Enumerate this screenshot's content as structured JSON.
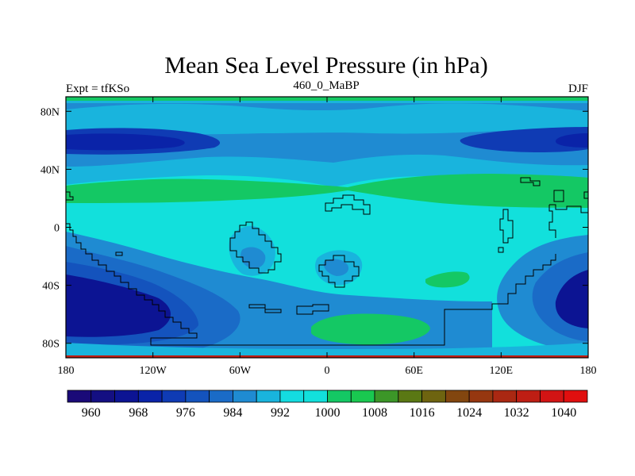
{
  "chart_data": {
    "type": "heatmap",
    "title": "Mean Sea Level Pressure (in hPa)",
    "left_string": "Expt = tfKSo",
    "center_string": "460_0_MaBP",
    "right_string": "DJF",
    "x_ticks": [
      {
        "value": -180,
        "label": "180"
      },
      {
        "value": -120,
        "label": "120W"
      },
      {
        "value": -60,
        "label": "60W"
      },
      {
        "value": 0,
        "label": "0"
      },
      {
        "value": 60,
        "label": "60E"
      },
      {
        "value": 120,
        "label": "120E"
      },
      {
        "value": 180,
        "label": "180"
      }
    ],
    "y_ticks": [
      {
        "value": 80,
        "label": "80N"
      },
      {
        "value": 40,
        "label": "40N"
      },
      {
        "value": 0,
        "label": "0"
      },
      {
        "value": -40,
        "label": "40S"
      },
      {
        "value": -80,
        "label": "80S"
      }
    ],
    "xlim": [
      -180,
      180
    ],
    "ylim": [
      -90,
      90
    ],
    "levels": [
      960,
      964,
      968,
      972,
      976,
      980,
      984,
      988,
      992,
      996,
      1000,
      1004,
      1008,
      1012,
      1016,
      1020,
      1024,
      1028,
      1032,
      1036,
      1040
    ],
    "colorbar_labels": [
      {
        "value": 960,
        "label": "960"
      },
      {
        "value": 968,
        "label": "968"
      },
      {
        "value": 976,
        "label": "976"
      },
      {
        "value": 984,
        "label": "984"
      },
      {
        "value": 992,
        "label": "992"
      },
      {
        "value": 1000,
        "label": "1000"
      },
      {
        "value": 1008,
        "label": "1008"
      },
      {
        "value": 1016,
        "label": "1016"
      },
      {
        "value": 1024,
        "label": "1024"
      },
      {
        "value": 1032,
        "label": "1032"
      },
      {
        "value": 1040,
        "label": "1040"
      }
    ],
    "colors": [
      "#1a0a78",
      "#140f82",
      "#0c1493",
      "#0a23a8",
      "#0f3bb4",
      "#1453bd",
      "#1a6bc7",
      "#1f8bd2",
      "#19b4dd",
      "#14dce0",
      "#12e0dc",
      "#14c864",
      "#19c850",
      "#3c9628",
      "#5a7814",
      "#6e6410",
      "#82460f",
      "#963710",
      "#aa2812",
      "#be1e14",
      "#d21414",
      "#e10f0f"
    ],
    "pressure_field": {
      "lon": [
        -180,
        -150,
        -120,
        -90,
        -60,
        -30,
        0,
        30,
        60,
        90,
        120,
        150,
        180
      ],
      "lat": [
        90,
        75,
        60,
        45,
        30,
        15,
        0,
        -15,
        -30,
        -45,
        -60,
        -75,
        -90
      ],
      "values_hpa": [
        [
          1004,
          1004,
          1004,
          1004,
          1004,
          1004,
          1004,
          1004,
          1004,
          1004,
          1004,
          1004,
          1004
        ],
        [
          988,
          988,
          988,
          990,
          990,
          990,
          990,
          990,
          990,
          988,
          986,
          986,
          988
        ],
        [
          976,
          978,
          984,
          990,
          992,
          992,
          992,
          992,
          992,
          990,
          982,
          976,
          976
        ],
        [
          990,
          990,
          992,
          994,
          994,
          994,
          994,
          994,
          994,
          994,
          992,
          990,
          990
        ],
        [
          1004,
          1004,
          1004,
          1004,
          1004,
          1004,
          1004,
          1004,
          1006,
          1006,
          1006,
          1006,
          1004
        ],
        [
          1002,
          1002,
          1002,
          1002,
          1002,
          1002,
          1002,
          1002,
          1002,
          1002,
          1002,
          1002,
          1002
        ],
        [
          990,
          994,
          998,
          1000,
          994,
          996,
          998,
          1000,
          1000,
          1000,
          1000,
          994,
          990
        ],
        [
          982,
          986,
          990,
          996,
          988,
          994,
          990,
          996,
          1000,
          1000,
          994,
          986,
          982
        ],
        [
          976,
          980,
          986,
          994,
          990,
          996,
          994,
          998,
          1006,
          1000,
          990,
          982,
          976
        ],
        [
          968,
          970,
          978,
          990,
          994,
          998,
          1000,
          1000,
          998,
          996,
          984,
          972,
          968
        ],
        [
          976,
          978,
          986,
          992,
          996,
          998,
          1000,
          1000,
          998,
          996,
          986,
          978,
          976
        ],
        [
          994,
          994,
          996,
          998,
          998,
          998,
          1006,
          1004,
          998,
          998,
          994,
          994,
          994
        ],
        [
          1024,
          1024,
          1024,
          1024,
          1024,
          1024,
          1024,
          1024,
          1024,
          1024,
          1024,
          1024,
          1024
        ]
      ]
    }
  }
}
